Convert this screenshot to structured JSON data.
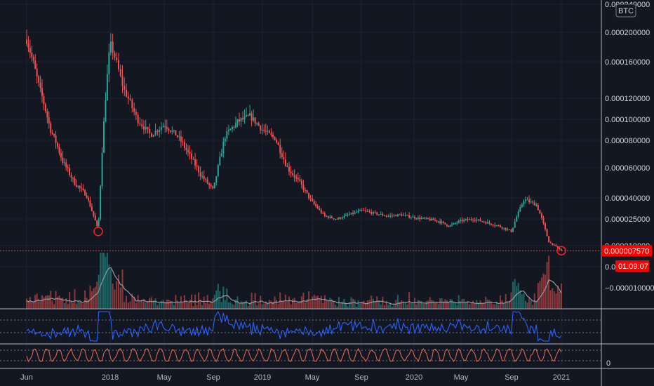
{
  "currency_badge": "BTC",
  "price_label": "0.000007570",
  "countdown_label": "01:09:07",
  "colors": {
    "background": "#131722",
    "up": "#26a69a",
    "down": "#ef5350",
    "volume_ma": "#9598a1",
    "rsi": "#2962ff",
    "stoch": "#e0644a",
    "marker": "#ff1f1f"
  },
  "chart_data": {
    "type": "line",
    "title": "",
    "xlabel": "",
    "ylabel": "",
    "y_ticks": [
      "0.000240000",
      "0.000200000",
      "0.000160000",
      "0.000120000",
      "0.000100000",
      "0.000080000",
      "0.000060000",
      "0.000040000",
      "0.000025000",
      "0.000010000",
      "0.0"
    ],
    "volume_tick": "−0.000010000",
    "stoch_tick": "0",
    "x_ticks": [
      "Jun",
      "2018",
      "May",
      "Sep",
      "2019",
      "May",
      "Sep",
      "2020",
      "May",
      "Sep",
      "2021"
    ],
    "price_series": {
      "name": "",
      "x": [
        "2017-06",
        "2017-07",
        "2017-08",
        "2017-09",
        "2017-10",
        "2017-11",
        "2017-12",
        "2018-01",
        "2018-02",
        "2018-03",
        "2018-04",
        "2018-05",
        "2018-06",
        "2018-07",
        "2018-08",
        "2018-09",
        "2018-10",
        "2018-11",
        "2018-12",
        "2019-01",
        "2019-02",
        "2019-03",
        "2019-04",
        "2019-05",
        "2019-06",
        "2019-07",
        "2019-08",
        "2019-09",
        "2019-10",
        "2019-11",
        "2019-12",
        "2020-01",
        "2020-02",
        "2020-03",
        "2020-04",
        "2020-05",
        "2020-06",
        "2020-07",
        "2020-08",
        "2020-09",
        "2020-10",
        "2020-11",
        "2020-12",
        "2021-01"
      ],
      "y": [
        0.00019,
        0.000135,
        9e-05,
        6.5e-05,
        5e-05,
        4.2e-05,
        1.8e-05,
        0.000185,
        0.00013,
        0.0001,
        8.5e-05,
        9.5e-05,
        8.5e-05,
        7e-05,
        5.5e-05,
        4.5e-05,
        8.5e-05,
        9.8e-05,
        0.000103,
        9e-05,
        8.2e-05,
        6e-05,
        5e-05,
        3.7e-05,
        2.7e-05,
        2.5e-05,
        2.8e-05,
        3.1e-05,
        2.9e-05,
        2.7e-05,
        2.8e-05,
        2.6e-05,
        2.5e-05,
        2.4e-05,
        2.1e-05,
        2.4e-05,
        2.5e-05,
        2.3e-05,
        2.1e-05,
        1.8e-05,
        3.9e-05,
        3.5e-05,
        1.2e-05,
        7.6e-06
      ]
    },
    "markers": [
      {
        "x": "2017-12",
        "y": 1.8e-05
      },
      {
        "x": "2021-01",
        "y": 7.6e-06
      }
    ],
    "current_price": 7.57e-06
  }
}
